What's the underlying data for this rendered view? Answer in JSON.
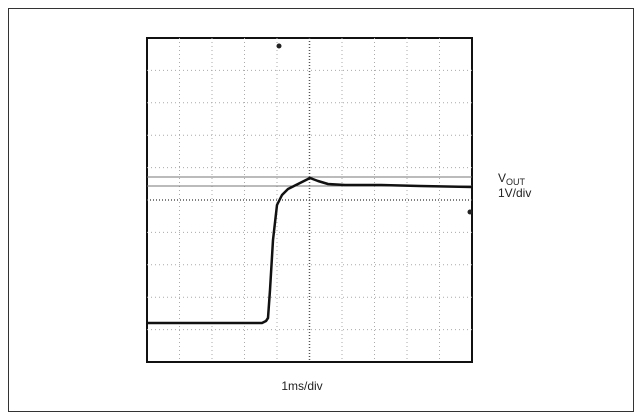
{
  "channel": {
    "name": "V",
    "subscript": "OUT",
    "scale": "1V/div"
  },
  "timebase": "1ms/div"
}
